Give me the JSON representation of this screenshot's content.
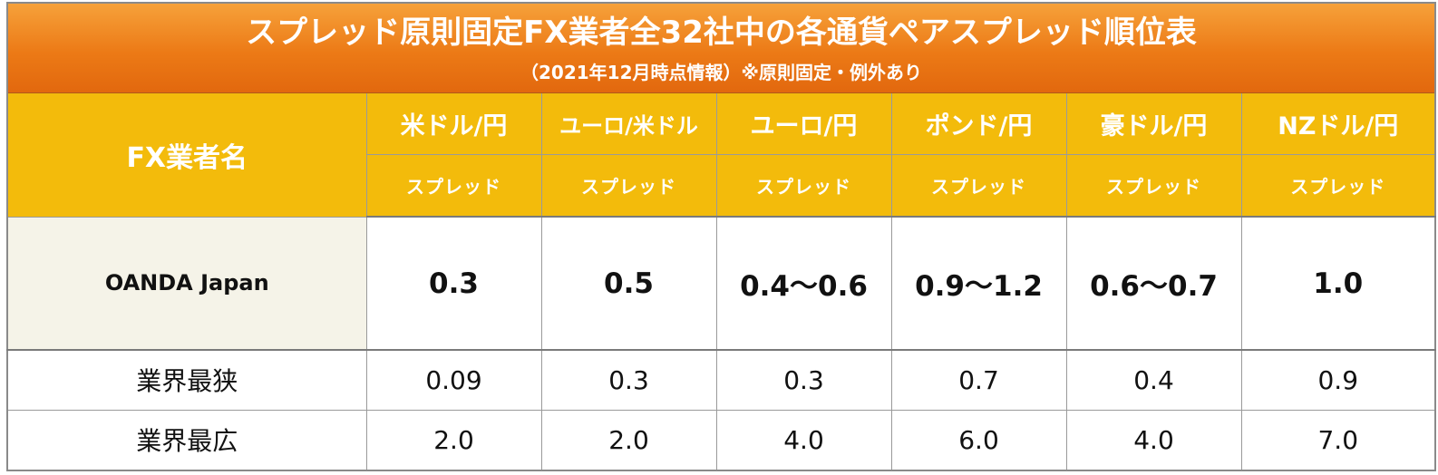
{
  "title": {
    "main": "スプレッド原則固定FX業者全32社中の各通貨ペアスプレッド順位表",
    "sub": "（2021年12月時点情報）※原則固定・例外あり"
  },
  "header": {
    "broker_label": "FX業者名",
    "pairs": [
      "米ドル/円",
      "ユーロ/米ドル",
      "ユーロ/円",
      "ポンド/円",
      "豪ドル/円",
      "NZドル/円"
    ],
    "sub_label": "スプレッド"
  },
  "rows": [
    {
      "label": "OANDA Japan",
      "values": [
        "0.3",
        "0.5",
        "0.4〜0.6",
        "0.9〜1.2",
        "0.6〜0.7",
        "1.0"
      ]
    },
    {
      "label": "業界最狭",
      "values": [
        "0.09",
        "0.3",
        "0.3",
        "0.7",
        "0.4",
        "0.9"
      ]
    },
    {
      "label": "業界最広",
      "values": [
        "2.0",
        "2.0",
        "4.0",
        "6.0",
        "4.0",
        "7.0"
      ]
    }
  ],
  "colors": {
    "title_bg": "#ec7a16",
    "header_bg": "#f3bb0b",
    "broker_cell_bg": "#f5f3e8"
  }
}
